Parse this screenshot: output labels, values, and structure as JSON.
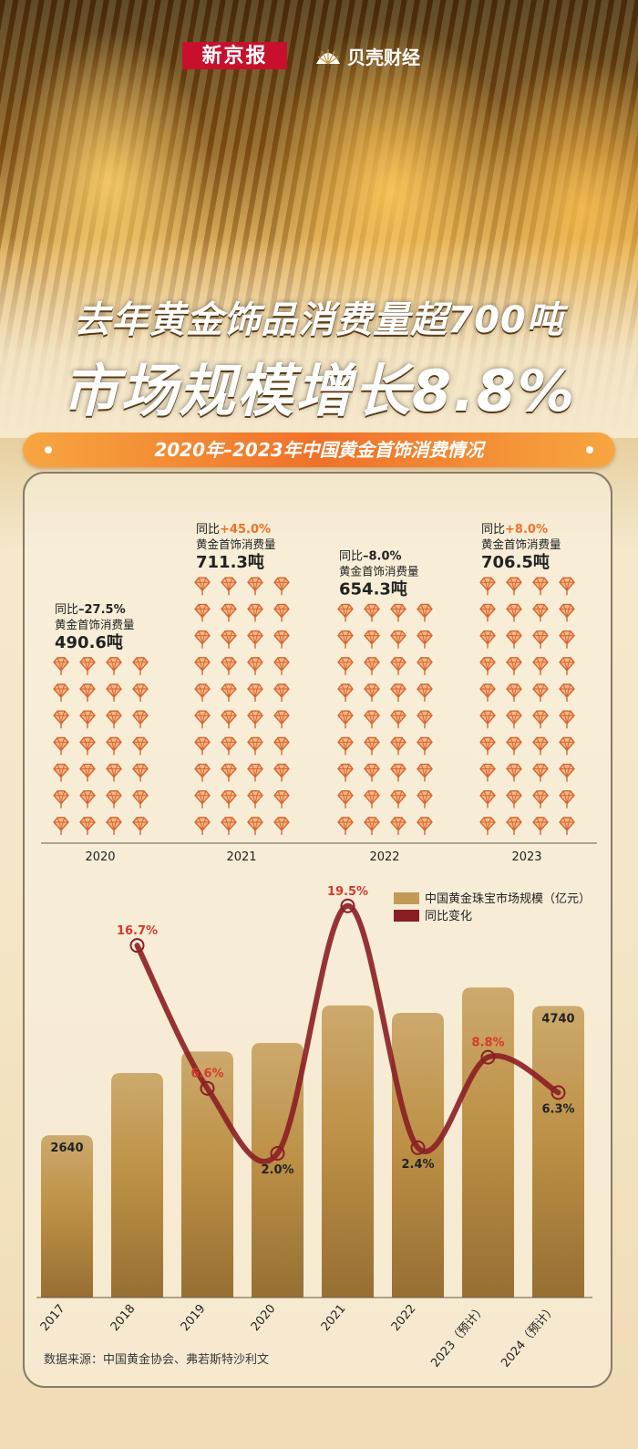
{
  "header": {
    "logo_xinjingbao": "新京报",
    "logo_beike": "贝壳财经",
    "title_line1": "去年黄金饰品消费量超700吨",
    "title_line2": "市场规模增长8.8%"
  },
  "banner": {
    "label": "2020年–2023年中国黄金首饰消费情况"
  },
  "source": "数据来源：中国黄金协会、弗若斯特沙利文",
  "colors": {
    "accent_orange": "#f0712a",
    "bar_gold": "#c39a55",
    "line_red": "#8b1e24",
    "text_dark": "#222222",
    "label_red": "#d63a2c"
  },
  "chart_data": [
    {
      "type": "pictograph",
      "unit_icon": "gold-diamond-icon",
      "categories": [
        "2020",
        "2021",
        "2022",
        "2023"
      ],
      "consumption_label": "黄金首饰消费量",
      "yoy_prefix": "同比",
      "values": [
        490.6,
        711.3,
        654.3,
        706.5
      ],
      "value_texts": [
        "490.6吨",
        "711.3吨",
        "654.3吨",
        "706.5吨"
      ],
      "yoy_texts": [
        "–27.5%",
        "+45.0%",
        "–8.0%",
        "+8.0%"
      ],
      "yoy_values": [
        -27.5,
        45.0,
        -8.0,
        8.0
      ]
    },
    {
      "type": "bar+line",
      "categories": [
        "2017",
        "2018",
        "2019",
        "2020",
        "2021",
        "2022",
        "2023（预计）",
        "2024（预计）"
      ],
      "legend": [
        "中国黄金珠宝市场规模（亿元）",
        "同比变化"
      ],
      "series": [
        {
          "name": "中国黄金珠宝市场规模（亿元）",
          "type": "bar",
          "values": [
            2640,
            3650,
            4000,
            4140,
            4750,
            4630,
            5040,
            4740
          ],
          "labeled": [
            2640,
            null,
            null,
            null,
            null,
            null,
            null,
            4740
          ]
        },
        {
          "name": "同比变化",
          "type": "line",
          "values": [
            null,
            16.7,
            6.6,
            2.0,
            19.5,
            2.4,
            8.8,
            6.3
          ],
          "labels": [
            null,
            "16.7%",
            "6.6%",
            "2.0%",
            "19.5%",
            "2.4%",
            "8.8%",
            "6.3%"
          ]
        }
      ]
    }
  ]
}
